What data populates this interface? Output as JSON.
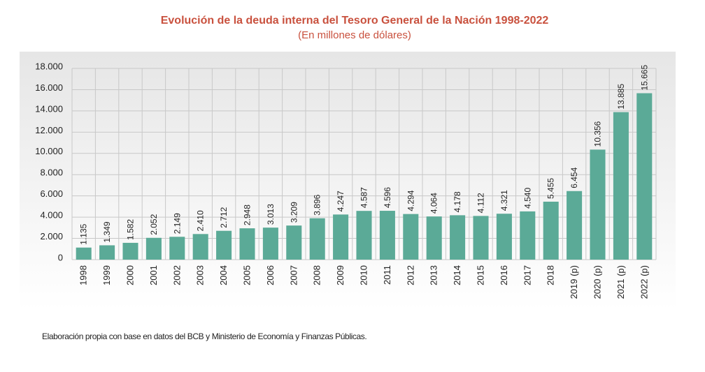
{
  "chart_data": {
    "type": "bar",
    "title": "Evolución de la deuda interna del Tesoro General de la Nación 1998-2022",
    "subtitle": "(En millones de dólares)",
    "categories": [
      "1998",
      "1999",
      "2000",
      "2001",
      "2002",
      "2003",
      "2004",
      "2005",
      "2006",
      "2007",
      "2008",
      "2009",
      "2010",
      "2011",
      "2012",
      "2013",
      "2014",
      "2015",
      "2016",
      "2017",
      "2018",
      "2019 (p)",
      "2020 (p)",
      "2021 (p)",
      "2022 (p)"
    ],
    "values": [
      1135,
      1349,
      1582,
      2052,
      2149,
      2410,
      2712,
      2948,
      3013,
      3209,
      3896,
      4247,
      4587,
      4596,
      4294,
      4064,
      4178,
      4112,
      4321,
      4540,
      5455,
      6454,
      10356,
      13885,
      15665
    ],
    "value_labels": [
      "1.135",
      "1.349",
      "1.582",
      "2.052",
      "2.149",
      "2.410",
      "2.712",
      "2.948",
      "3.013",
      "3.209",
      "3.896",
      "4.247",
      "4.587",
      "4.596",
      "4.294",
      "4.064",
      "4.178",
      "4.112",
      "4.321",
      "4.540",
      "5.455",
      "6.454",
      "10.356",
      "13.885",
      "15.665"
    ],
    "color": "#5baa97",
    "ylim": [
      0,
      18000
    ],
    "yticks": [
      0,
      {
        "value": 2000,
        "label": "2.000"
      },
      {
        "value": 4000,
        "label": "4.000"
      },
      {
        "value": 6000,
        "label": "6.000"
      },
      {
        "value": 8000,
        "label": "8.000"
      },
      {
        "value": 10000,
        "label": "10.000"
      },
      {
        "value": 12000,
        "label": "12.000"
      },
      {
        "value": 14000,
        "label": "14.000"
      },
      {
        "value": 16000,
        "label": "16.000"
      },
      {
        "value": 18000,
        "label": "18.000"
      }
    ],
    "grid": true,
    "note": "Elaboración propia con base en datos del BCB y Ministerio de Economía y Finanzas Públicas."
  }
}
